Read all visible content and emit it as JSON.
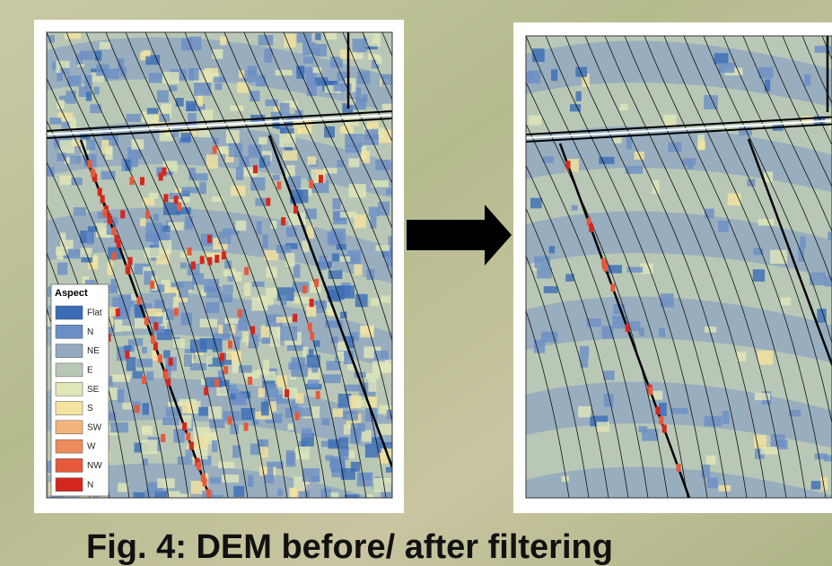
{
  "caption": "Fig. 4: DEM before/ after filtering",
  "legend": {
    "title": "Aspect",
    "items": [
      {
        "label": "Flat",
        "color": "#3a6db6"
      },
      {
        "label": "N",
        "color": "#6b8ec6"
      },
      {
        "label": "NE",
        "color": "#92a9bf"
      },
      {
        "label": "E",
        "color": "#b9c8b6"
      },
      {
        "label": "SE",
        "color": "#e1e7b9"
      },
      {
        "label": "S",
        "color": "#f6e39f"
      },
      {
        "label": "SW",
        "color": "#f3b47b"
      },
      {
        "label": "W",
        "color": "#ee8b5c"
      },
      {
        "label": "NW",
        "color": "#e55a3b"
      },
      {
        "label": "N",
        "color": "#d5261d"
      }
    ]
  }
}
